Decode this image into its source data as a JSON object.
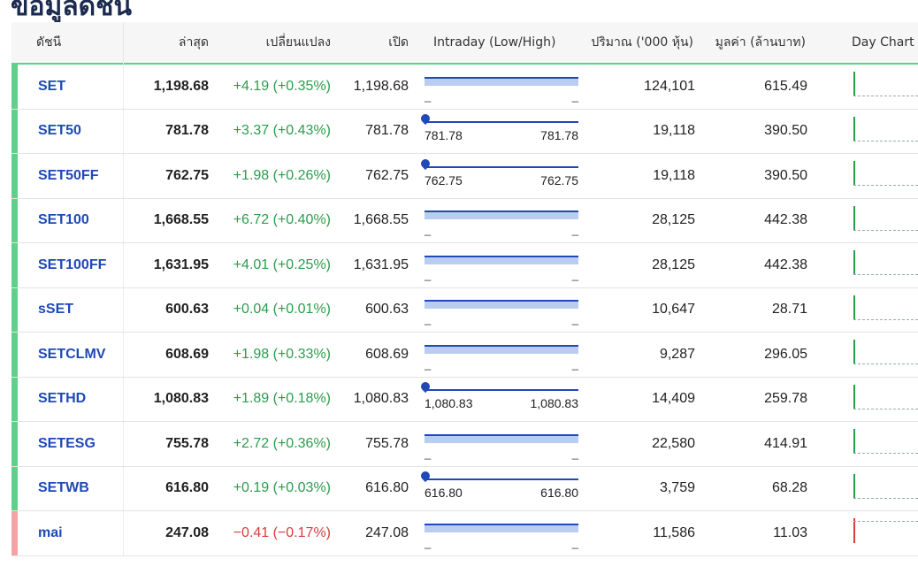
{
  "page": {
    "title": "ข้อมูลดัชนี"
  },
  "columns": {
    "name": "ดัชนี",
    "last": "ล่าสุด",
    "change": "เปลี่ยนแปลง",
    "open": "เปิด",
    "intraday": "Intraday (Low/High)",
    "volume": "ปริมาณ ('000 หุ้น)",
    "value": "มูลค่า (ล้านบาท)",
    "day_chart": "Day Chart"
  },
  "colors": {
    "up": "#2a9d4b",
    "down": "#d93c3c",
    "link": "#1f49b6",
    "bar": "#b8cdf0"
  },
  "rows": [
    {
      "name": "SET",
      "last": "1,198.68",
      "change": "+4.19 (+0.35%)",
      "open": "1,198.68",
      "intraday_type": "bar",
      "low": "_",
      "high": "_",
      "volume": "124,101",
      "value": "615.49",
      "direction": "up"
    },
    {
      "name": "SET50",
      "last": "781.78",
      "change": "+3.37 (+0.43%)",
      "open": "781.78",
      "intraday_type": "point",
      "low": "781.78",
      "high": "781.78",
      "volume": "19,118",
      "value": "390.50",
      "direction": "up"
    },
    {
      "name": "SET50FF",
      "last": "762.75",
      "change": "+1.98 (+0.26%)",
      "open": "762.75",
      "intraday_type": "point",
      "low": "762.75",
      "high": "762.75",
      "volume": "19,118",
      "value": "390.50",
      "direction": "up"
    },
    {
      "name": "SET100",
      "last": "1,668.55",
      "change": "+6.72 (+0.40%)",
      "open": "1,668.55",
      "intraday_type": "bar",
      "low": "_",
      "high": "_",
      "volume": "28,125",
      "value": "442.38",
      "direction": "up"
    },
    {
      "name": "SET100FF",
      "last": "1,631.95",
      "change": "+4.01 (+0.25%)",
      "open": "1,631.95",
      "intraday_type": "bar",
      "low": "_",
      "high": "_",
      "volume": "28,125",
      "value": "442.38",
      "direction": "up"
    },
    {
      "name": "sSET",
      "last": "600.63",
      "change": "+0.04 (+0.01%)",
      "open": "600.63",
      "intraday_type": "bar",
      "low": "_",
      "high": "_",
      "volume": "10,647",
      "value": "28.71",
      "direction": "up"
    },
    {
      "name": "SETCLMV",
      "last": "608.69",
      "change": "+1.98 (+0.33%)",
      "open": "608.69",
      "intraday_type": "bar",
      "low": "_",
      "high": "_",
      "volume": "9,287",
      "value": "296.05",
      "direction": "up"
    },
    {
      "name": "SETHD",
      "last": "1,080.83",
      "change": "+1.89 (+0.18%)",
      "open": "1,080.83",
      "intraday_type": "point",
      "low": "1,080.83",
      "high": "1,080.83",
      "volume": "14,409",
      "value": "259.78",
      "direction": "up"
    },
    {
      "name": "SETESG",
      "last": "755.78",
      "change": "+2.72 (+0.36%)",
      "open": "755.78",
      "intraday_type": "bar",
      "low": "_",
      "high": "_",
      "volume": "22,580",
      "value": "414.91",
      "direction": "up"
    },
    {
      "name": "SETWB",
      "last": "616.80",
      "change": "+0.19 (+0.03%)",
      "open": "616.80",
      "intraday_type": "point",
      "low": "616.80",
      "high": "616.80",
      "volume": "3,759",
      "value": "68.28",
      "direction": "up"
    },
    {
      "name": "mai",
      "last": "247.08",
      "change": "−0.41 (−0.17%)",
      "open": "247.08",
      "intraday_type": "bar",
      "low": "_",
      "high": "_",
      "volume": "11,586",
      "value": "11.03",
      "direction": "down"
    }
  ]
}
